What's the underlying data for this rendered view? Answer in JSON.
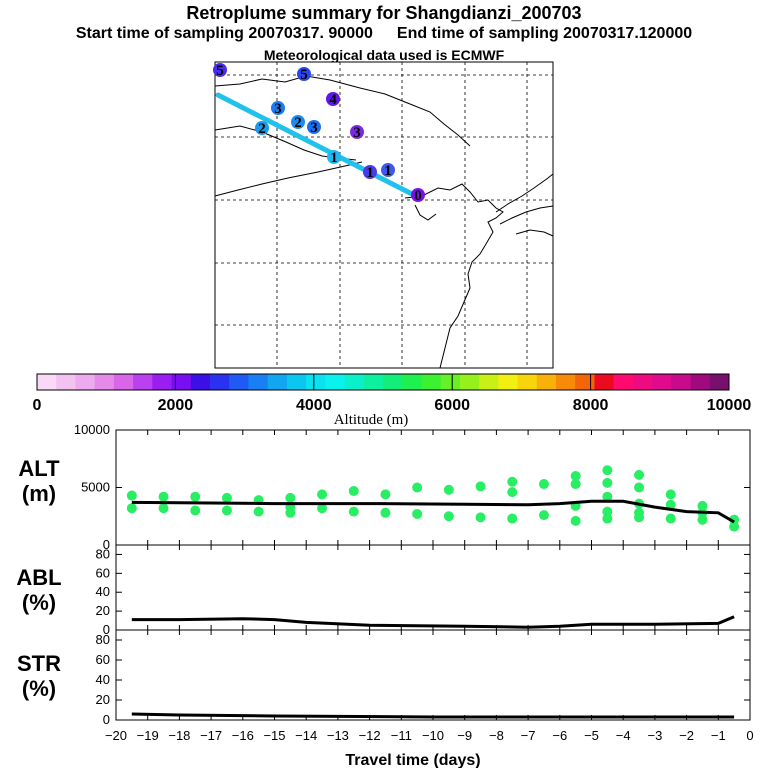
{
  "header": {
    "title": "Retroplume summary for Shangdianzi_200703",
    "start_label": "Start time of sampling 20070317. 90000",
    "end_label": "End time of sampling 20070317.120000",
    "met_label": "Meteorological data used is ECMWF"
  },
  "colorbar": {
    "xlabel": "Altitude (m)",
    "ticks": [
      "0",
      "2000",
      "4000",
      "6000",
      "8000",
      "10000"
    ],
    "colors": [
      "#f9d9f6",
      "#f4c2f0",
      "#eeaaee",
      "#e58ae8",
      "#d966e8",
      "#bb40ef",
      "#9a1ef2",
      "#7a0ef2",
      "#3a10e6",
      "#2a32f0",
      "#1f5af4",
      "#1880f2",
      "#12a5f0",
      "#0cc6f2",
      "#0ae2ef",
      "#0af2ee",
      "#0af0c8",
      "#0cf0a0",
      "#12ee7a",
      "#1ef050",
      "#3cf032",
      "#66f028",
      "#96f01c",
      "#c8f014",
      "#f2f010",
      "#f7d40c",
      "#f8b00a",
      "#f78a08",
      "#f46408",
      "#ec0a20",
      "#ff0a70",
      "#f00a80",
      "#e00a8c",
      "#c80a8c",
      "#a00a7e",
      "#78106e"
    ]
  },
  "map": {
    "markers": [
      {
        "label": "5",
        "color": "#4a2af0"
      },
      {
        "label": "5",
        "color": "#2a46f0"
      },
      {
        "label": "3",
        "color": "#1a7cf0"
      },
      {
        "label": "2",
        "color": "#1a9ae8"
      },
      {
        "label": "4",
        "color": "#6018e8"
      },
      {
        "label": "3",
        "color": "#1a6ef0"
      },
      {
        "label": "2",
        "color": "#1a8cf0"
      },
      {
        "label": "3",
        "color": "#7a2ae0"
      },
      {
        "label": "1",
        "color": "#20b8f0"
      },
      {
        "label": "1",
        "color": "#4a3ae8"
      },
      {
        "label": "1",
        "color": "#3a5af0"
      },
      {
        "label": "0",
        "color": "#7a10e8"
      }
    ]
  },
  "chart_data": [
    {
      "type": "line",
      "title": "ALT (m)",
      "ylim": [
        0,
        10000
      ],
      "yticks": [
        "10000",
        "5000",
        "0"
      ],
      "series": [
        {
          "name": "mean altitude",
          "x": [
            -19.5,
            -17,
            -15,
            -12,
            -9,
            -7,
            -6,
            -5,
            -4,
            -3,
            -2,
            -1,
            -0.5
          ],
          "values": [
            3700,
            3650,
            3600,
            3600,
            3550,
            3500,
            3600,
            3800,
            3800,
            3300,
            2900,
            2800,
            2000
          ]
        }
      ],
      "scatter": {
        "name": "particle clusters",
        "points": [
          [
            -19.5,
            4300
          ],
          [
            -19.5,
            3200
          ],
          [
            -18.5,
            4200
          ],
          [
            -18.5,
            3200
          ],
          [
            -17.5,
            4200
          ],
          [
            -17.5,
            3000
          ],
          [
            -16.5,
            4100
          ],
          [
            -16.5,
            3000
          ],
          [
            -15.5,
            3900
          ],
          [
            -15.5,
            2900
          ],
          [
            -14.5,
            4100
          ],
          [
            -14.5,
            3300
          ],
          [
            -14.5,
            2800
          ],
          [
            -13.5,
            4400
          ],
          [
            -13.5,
            3200
          ],
          [
            -12.5,
            4700
          ],
          [
            -12.5,
            2900
          ],
          [
            -11.5,
            4400
          ],
          [
            -11.5,
            2800
          ],
          [
            -10.5,
            5000
          ],
          [
            -10.5,
            2700
          ],
          [
            -9.5,
            4800
          ],
          [
            -9.5,
            2500
          ],
          [
            -8.5,
            5100
          ],
          [
            -8.5,
            2400
          ],
          [
            -7.5,
            5500
          ],
          [
            -7.5,
            4600
          ],
          [
            -7.5,
            2300
          ],
          [
            -6.5,
            5300
          ],
          [
            -6.5,
            2600
          ],
          [
            -5.5,
            6000
          ],
          [
            -5.5,
            5300
          ],
          [
            -5.5,
            3400
          ],
          [
            -5.5,
            2100
          ],
          [
            -4.5,
            6500
          ],
          [
            -4.5,
            5400
          ],
          [
            -4.5,
            4200
          ],
          [
            -4.5,
            2900
          ],
          [
            -4.5,
            2300
          ],
          [
            -3.5,
            6100
          ],
          [
            -3.5,
            5000
          ],
          [
            -3.5,
            3600
          ],
          [
            -3.5,
            2800
          ],
          [
            -3.5,
            2400
          ],
          [
            -2.5,
            4400
          ],
          [
            -2.5,
            3500
          ],
          [
            -2.5,
            2300
          ],
          [
            -1.5,
            3400
          ],
          [
            -1.5,
            2800
          ],
          [
            -1.5,
            2200
          ],
          [
            -0.5,
            2200
          ],
          [
            -0.5,
            1600
          ]
        ]
      }
    },
    {
      "type": "line",
      "title": "ABL (%)",
      "ylim": [
        0,
        90
      ],
      "yticks": [
        "80",
        "60",
        "40",
        "20",
        "0"
      ],
      "series": [
        {
          "name": "ABL fraction",
          "x": [
            -19.5,
            -18,
            -16,
            -15,
            -14,
            -12,
            -9,
            -7,
            -6,
            -5,
            -3,
            -1,
            -0.5
          ],
          "values": [
            11,
            11,
            12,
            11,
            8,
            5,
            4,
            3,
            4,
            6,
            6,
            7,
            14
          ]
        }
      ]
    },
    {
      "type": "line",
      "title": "STR (%)",
      "ylim": [
        0,
        90
      ],
      "yticks": [
        "80",
        "60",
        "40",
        "20",
        "0"
      ],
      "xlabel": "Travel time (days)",
      "xticks": [
        "-20",
        "-19",
        "-18",
        "-17",
        "-16",
        "-15",
        "-14",
        "-13",
        "-12",
        "-11",
        "-10",
        "-9",
        "-8",
        "-7",
        "-6",
        "-5",
        "-4",
        "-3",
        "-2",
        "-1",
        "0"
      ],
      "series": [
        {
          "name": "stratospheric fraction",
          "x": [
            -19.5,
            -18,
            -15,
            -10,
            -5,
            -1,
            -0.5
          ],
          "values": [
            6,
            5,
            4,
            3,
            3,
            3,
            3
          ]
        }
      ]
    }
  ]
}
